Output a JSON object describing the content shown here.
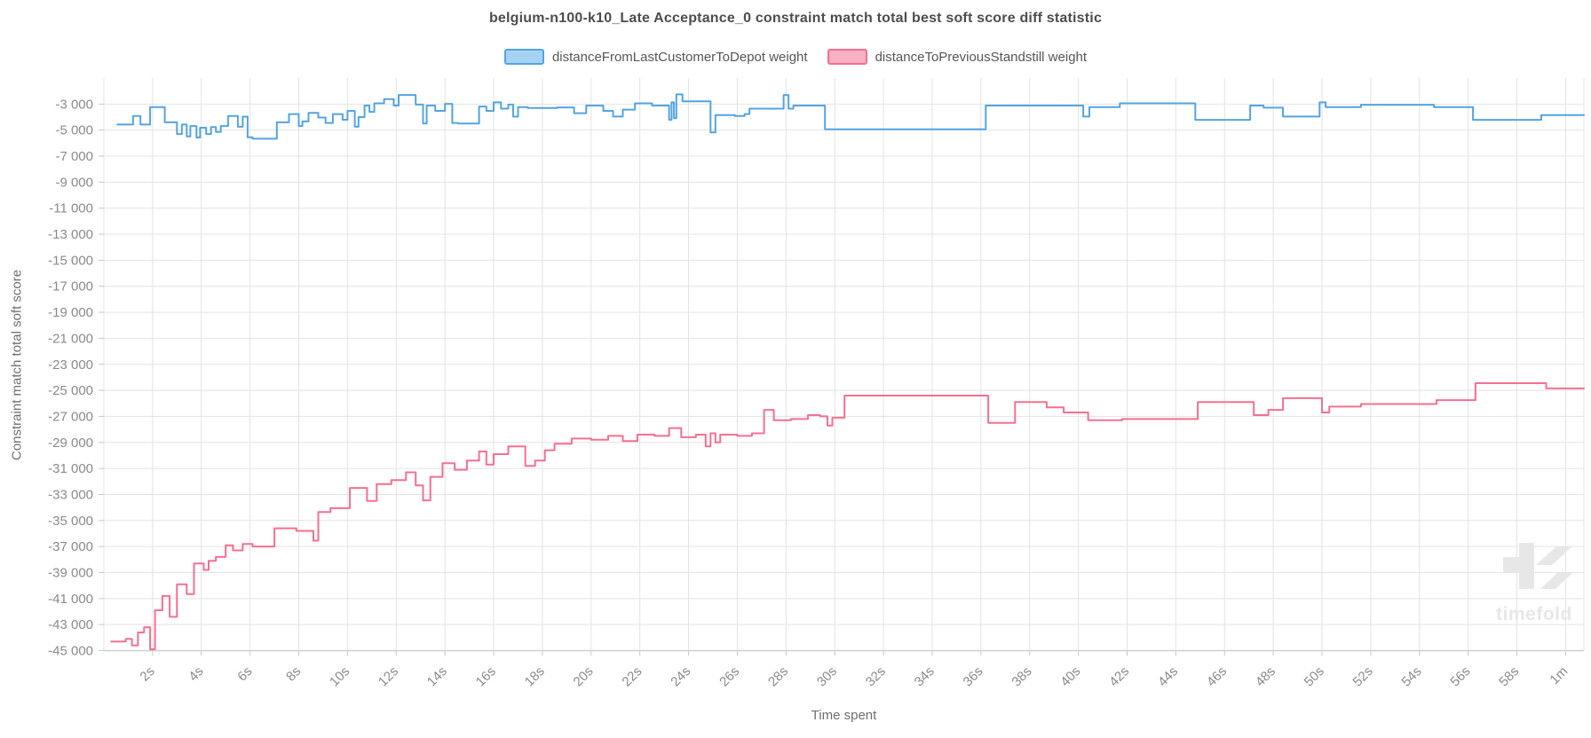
{
  "page": {
    "watermark_text": "timefold"
  },
  "colors": {
    "grid": "#e3e3e3",
    "axis": "#cfcfcf",
    "tick": "#c8c8c8",
    "tick_text": "#8a8a8a",
    "title_text": "#4d4d4d",
    "series_blue": "#54a4e1",
    "series_blue_fill": "#a7d3f3",
    "series_pink": "#f4708f",
    "series_pink_fill": "#f9b0c1",
    "watermark": "#e7e7e7"
  },
  "chart_data": {
    "type": "line",
    "step": "after",
    "grid": true,
    "legend_position": "top",
    "title": "belgium-n100-k10_Late Acceptance_0 constraint match total best soft score diff statistic",
    "xlabel": "Time spent",
    "ylabel": "Constraint match total soft score",
    "xlim": [
      0,
      60.75
    ],
    "ylim": [
      -45000,
      -1000
    ],
    "x_ticks": {
      "values": [
        2,
        4,
        6,
        8,
        10,
        12,
        14,
        16,
        18,
        20,
        22,
        24,
        26,
        28,
        30,
        32,
        34,
        36,
        38,
        40,
        42,
        44,
        46,
        48,
        50,
        52,
        54,
        56,
        58,
        60
      ],
      "labels": [
        "2s",
        "4s",
        "6s",
        "8s",
        "10s",
        "12s",
        "14s",
        "16s",
        "18s",
        "20s",
        "22s",
        "24s",
        "26s",
        "28s",
        "30s",
        "32s",
        "34s",
        "36s",
        "38s",
        "40s",
        "42s",
        "44s",
        "46s",
        "48s",
        "50s",
        "52s",
        "54s",
        "56s",
        "58s",
        "1m"
      ]
    },
    "y_ticks": {
      "values": [
        -3000,
        -5000,
        -7000,
        -9000,
        -11000,
        -13000,
        -15000,
        -17000,
        -19000,
        -21000,
        -23000,
        -25000,
        -27000,
        -29000,
        -31000,
        -33000,
        -35000,
        -37000,
        -39000,
        -41000,
        -43000,
        -45000
      ],
      "labels": [
        "-3 000",
        "-5 000",
        "-7 000",
        "-9 000",
        "-11 000",
        "-13 000",
        "-15 000",
        "-17 000",
        "-19 000",
        "-21 000",
        "-23 000",
        "-25 000",
        "-27 000",
        "-29 000",
        "-31 000",
        "-33 000",
        "-35 000",
        "-37 000",
        "-39 000",
        "-41 000",
        "-43 000",
        "-45 000"
      ]
    },
    "series": [
      {
        "name": "distanceFromLastCustomerToDepot weight",
        "line_color": "#54a4e1",
        "fill_color": "#a7d3f3",
        "points": [
          [
            0.55,
            -4575
          ],
          [
            1.2,
            -3915
          ],
          [
            1.5,
            -4575
          ],
          [
            1.9,
            -3230
          ],
          [
            2.5,
            -4400
          ],
          [
            3.0,
            -5300
          ],
          [
            3.2,
            -4575
          ],
          [
            3.4,
            -5475
          ],
          [
            3.55,
            -4690
          ],
          [
            3.8,
            -5570
          ],
          [
            3.95,
            -4815
          ],
          [
            4.2,
            -5300
          ],
          [
            4.4,
            -4760
          ],
          [
            4.6,
            -5135
          ],
          [
            4.8,
            -4690
          ],
          [
            5.1,
            -3915
          ],
          [
            5.5,
            -4740
          ],
          [
            5.7,
            -3965
          ],
          [
            5.9,
            -5545
          ],
          [
            6.1,
            -5665
          ],
          [
            7.1,
            -4400
          ],
          [
            7.6,
            -3770
          ],
          [
            8.0,
            -4690
          ],
          [
            8.15,
            -4330
          ],
          [
            8.4,
            -3670
          ],
          [
            8.8,
            -4035
          ],
          [
            9.1,
            -4450
          ],
          [
            9.4,
            -3770
          ],
          [
            9.8,
            -4205
          ],
          [
            10.0,
            -3525
          ],
          [
            10.3,
            -4740
          ],
          [
            10.45,
            -4000
          ],
          [
            10.7,
            -3110
          ],
          [
            10.9,
            -3600
          ],
          [
            11.1,
            -2940
          ],
          [
            11.5,
            -2625
          ],
          [
            11.9,
            -3110
          ],
          [
            12.1,
            -2305
          ],
          [
            12.8,
            -3040
          ],
          [
            13.1,
            -4500
          ],
          [
            13.25,
            -3110
          ],
          [
            13.6,
            -3525
          ],
          [
            14.0,
            -2985
          ],
          [
            14.3,
            -4450
          ],
          [
            14.55,
            -4500
          ],
          [
            15.4,
            -3185
          ],
          [
            15.7,
            -3525
          ],
          [
            16.0,
            -2870
          ],
          [
            16.3,
            -3355
          ],
          [
            16.6,
            -3040
          ],
          [
            16.8,
            -3965
          ],
          [
            17.0,
            -3230
          ],
          [
            17.4,
            -3300
          ],
          [
            18.6,
            -3255
          ],
          [
            19.3,
            -3700
          ],
          [
            19.8,
            -3110
          ],
          [
            20.5,
            -3525
          ],
          [
            20.9,
            -3960
          ],
          [
            21.3,
            -3425
          ],
          [
            21.8,
            -2940
          ],
          [
            22.5,
            -3110
          ],
          [
            23.2,
            -4205
          ],
          [
            23.3,
            -2870
          ],
          [
            23.4,
            -4090
          ],
          [
            23.5,
            -2255
          ],
          [
            23.75,
            -2790
          ],
          [
            24.9,
            -5180
          ],
          [
            25.1,
            -3840
          ],
          [
            25.9,
            -3915
          ],
          [
            26.3,
            -3770
          ],
          [
            26.5,
            -3355
          ],
          [
            27.9,
            -2300
          ],
          [
            28.1,
            -3355
          ],
          [
            28.3,
            -3110
          ],
          [
            29.6,
            -4935
          ],
          [
            36.2,
            -3110
          ],
          [
            40.2,
            -3960
          ],
          [
            40.45,
            -3230
          ],
          [
            41.7,
            -2940
          ],
          [
            44.8,
            -4210
          ],
          [
            47.05,
            -3110
          ],
          [
            47.6,
            -3280
          ],
          [
            48.4,
            -3960
          ],
          [
            49.9,
            -2870
          ],
          [
            50.15,
            -3230
          ],
          [
            51.6,
            -3050
          ],
          [
            54.6,
            -3230
          ],
          [
            56.2,
            -4210
          ],
          [
            59.0,
            -3840
          ]
        ]
      },
      {
        "name": "distanceToPreviousStandstill weight",
        "line_color": "#f4708f",
        "fill_color": "#f9b0c1",
        "points": [
          [
            0.3,
            -44300
          ],
          [
            0.9,
            -44100
          ],
          [
            1.15,
            -44600
          ],
          [
            1.4,
            -43600
          ],
          [
            1.65,
            -43200
          ],
          [
            1.9,
            -44900
          ],
          [
            2.1,
            -41900
          ],
          [
            2.4,
            -40800
          ],
          [
            2.7,
            -42400
          ],
          [
            3.0,
            -39900
          ],
          [
            3.4,
            -40650
          ],
          [
            3.7,
            -38300
          ],
          [
            4.1,
            -38800
          ],
          [
            4.3,
            -38100
          ],
          [
            4.6,
            -37800
          ],
          [
            5.0,
            -36900
          ],
          [
            5.3,
            -37300
          ],
          [
            5.7,
            -36800
          ],
          [
            6.1,
            -37000
          ],
          [
            7.0,
            -35600
          ],
          [
            7.9,
            -35800
          ],
          [
            8.6,
            -36550
          ],
          [
            8.8,
            -34350
          ],
          [
            9.3,
            -34050
          ],
          [
            10.1,
            -32500
          ],
          [
            10.8,
            -33500
          ],
          [
            11.2,
            -32200
          ],
          [
            11.8,
            -31900
          ],
          [
            12.4,
            -31300
          ],
          [
            12.8,
            -32300
          ],
          [
            13.1,
            -33450
          ],
          [
            13.4,
            -31650
          ],
          [
            13.9,
            -30600
          ],
          [
            14.4,
            -31100
          ],
          [
            14.9,
            -30400
          ],
          [
            15.4,
            -29700
          ],
          [
            15.7,
            -30700
          ],
          [
            16.0,
            -29900
          ],
          [
            16.6,
            -29300
          ],
          [
            17.3,
            -30800
          ],
          [
            17.7,
            -30400
          ],
          [
            18.1,
            -29600
          ],
          [
            18.5,
            -29100
          ],
          [
            19.2,
            -28700
          ],
          [
            20.0,
            -28800
          ],
          [
            20.7,
            -28500
          ],
          [
            21.3,
            -28900
          ],
          [
            21.9,
            -28400
          ],
          [
            22.6,
            -28500
          ],
          [
            23.2,
            -27900
          ],
          [
            23.7,
            -28600
          ],
          [
            24.3,
            -28400
          ],
          [
            24.7,
            -29300
          ],
          [
            24.9,
            -28300
          ],
          [
            25.1,
            -29000
          ],
          [
            25.3,
            -28400
          ],
          [
            26.0,
            -28500
          ],
          [
            26.6,
            -28300
          ],
          [
            27.1,
            -26500
          ],
          [
            27.5,
            -27300
          ],
          [
            28.2,
            -27200
          ],
          [
            28.9,
            -26900
          ],
          [
            29.4,
            -27000
          ],
          [
            29.7,
            -27700
          ],
          [
            29.9,
            -27100
          ],
          [
            30.4,
            -25400
          ],
          [
            36.3,
            -27500
          ],
          [
            37.4,
            -25900
          ],
          [
            38.7,
            -26300
          ],
          [
            39.4,
            -26700
          ],
          [
            40.4,
            -27300
          ],
          [
            41.8,
            -27200
          ],
          [
            44.9,
            -25900
          ],
          [
            47.2,
            -26900
          ],
          [
            47.8,
            -26500
          ],
          [
            48.4,
            -25600
          ],
          [
            50.0,
            -26700
          ],
          [
            50.3,
            -26250
          ],
          [
            51.6,
            -26050
          ],
          [
            54.7,
            -25750
          ],
          [
            56.3,
            -24450
          ],
          [
            59.2,
            -24850
          ]
        ]
      }
    ]
  }
}
